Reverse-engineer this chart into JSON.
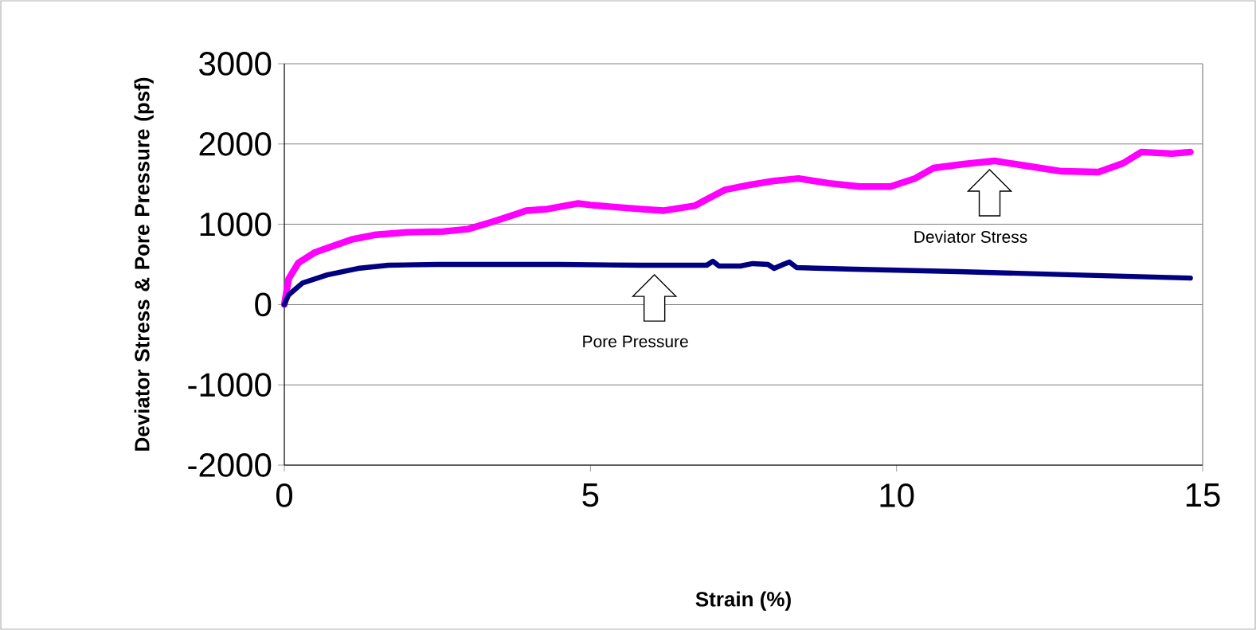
{
  "chart_data": {
    "type": "line",
    "xlabel": "Strain (%)",
    "ylabel": "Deviator Stress & Pore Pressure (psf)",
    "xlim": [
      0,
      15
    ],
    "ylim": [
      -2000,
      3000
    ],
    "xticks": [
      0,
      5,
      10,
      15
    ],
    "yticks": [
      -2000,
      -1000,
      0,
      1000,
      2000,
      3000
    ],
    "grid": "y",
    "annotations": [
      "Pore Pressure",
      "Deviator Stress"
    ],
    "series": [
      {
        "color": "#ff00ff",
        "x": [
          0,
          0.07,
          0.23,
          0.5,
          0.8,
          1.1,
          1.5,
          2.0,
          2.6,
          3.0,
          3.4,
          3.8,
          3.95,
          4.3,
          4.8,
          5.0,
          5.8,
          6.2,
          6.7,
          6.9,
          7.2,
          7.6,
          8.0,
          8.4,
          8.9,
          9.4,
          9.9,
          10.3,
          10.6,
          11.1,
          11.6,
          12.1,
          12.7,
          13.3,
          13.7,
          14.0,
          14.5,
          14.8
        ],
        "values": [
          0,
          320,
          520,
          650,
          730,
          810,
          870,
          900,
          910,
          940,
          1030,
          1130,
          1170,
          1190,
          1260,
          1240,
          1190,
          1170,
          1230,
          1310,
          1430,
          1490,
          1540,
          1570,
          1510,
          1470,
          1470,
          1570,
          1700,
          1750,
          1790,
          1730,
          1660,
          1650,
          1760,
          1900,
          1880,
          1900
        ]
      },
      {
        "color": "#000080",
        "x": [
          0,
          0.07,
          0.3,
          0.7,
          1.2,
          1.7,
          2.5,
          4.5,
          5.8,
          6.9,
          7.0,
          7.1,
          7.45,
          7.65,
          7.9,
          8.0,
          8.15,
          8.25,
          8.37,
          9.3,
          11.0,
          12.9,
          14.8
        ],
        "values": [
          0,
          120,
          270,
          370,
          450,
          490,
          500,
          500,
          490,
          490,
          540,
          480,
          480,
          510,
          500,
          450,
          500,
          530,
          460,
          440,
          410,
          370,
          330
        ]
      }
    ]
  }
}
